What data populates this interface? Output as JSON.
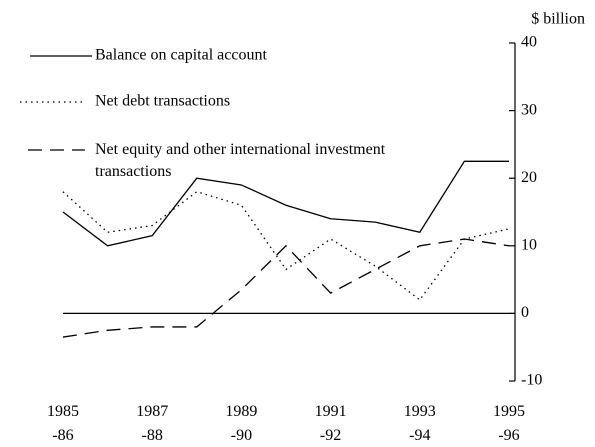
{
  "chart_data": {
    "type": "line",
    "y_axis_label": "$ billion",
    "categories": [
      "1985\n-86",
      null,
      "1987\n-88",
      null,
      "1989\n-90",
      null,
      "1991\n-92",
      null,
      "1993\n-94",
      null,
      "1995\n-96"
    ],
    "series": [
      {
        "name": "Balance on capital account",
        "color": "#000000",
        "style": "solid",
        "values": [
          15,
          10,
          11.5,
          20,
          19,
          16,
          14,
          13.5,
          12,
          22.5,
          22.5
        ]
      },
      {
        "name": "Net debt transactions",
        "color": "#000000",
        "style": "dotted",
        "values": [
          18,
          12,
          13,
          18,
          16,
          6.5,
          11,
          7,
          2,
          11,
          12.5
        ]
      },
      {
        "name": "Net equity and other international investment transactions",
        "color": "#000000",
        "style": "dashed",
        "values": [
          -3.5,
          -2.5,
          -2,
          -2,
          3.5,
          10,
          3,
          6.5,
          10,
          11,
          10
        ]
      }
    ],
    "ylim": [
      -10,
      40
    ],
    "yticks": [
      -10,
      0,
      10,
      20,
      30,
      40
    ],
    "y_axis_side": "right",
    "grid": false,
    "legend": "upper left"
  }
}
